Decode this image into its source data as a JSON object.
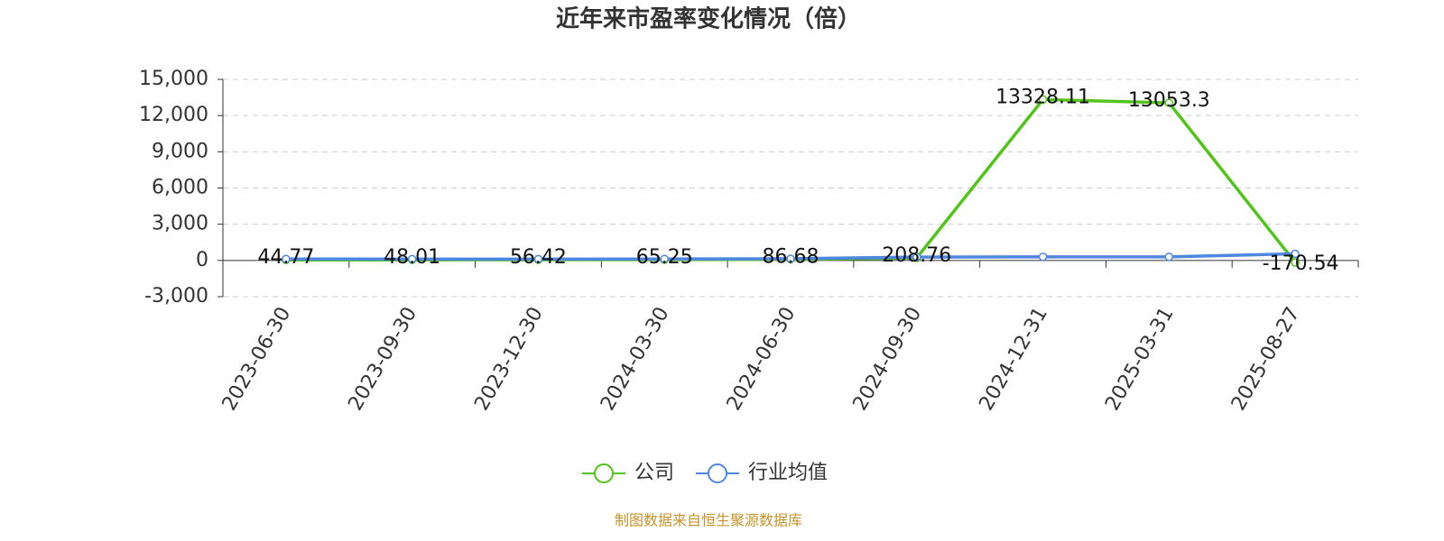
{
  "chart_data": {
    "type": "line",
    "title": "近年来市盈率变化情况（倍）",
    "categories": [
      "2023-06-30",
      "2023-09-30",
      "2023-12-30",
      "2024-03-30",
      "2024-06-30",
      "2024-09-30",
      "2024-12-31",
      "2025-03-31",
      "2025-08-27"
    ],
    "series": [
      {
        "name": "公司",
        "color": "#52c41a",
        "values": [
          44.77,
          48.01,
          56.42,
          65.25,
          86.68,
          208.76,
          13328.11,
          13053.3,
          -170.54
        ]
      },
      {
        "name": "行业均值",
        "color": "#4e87e0",
        "values": [
          120,
          110,
          110,
          120,
          140,
          280,
          300,
          300,
          550
        ]
      }
    ],
    "ylim": [
      -3000,
      15000
    ],
    "yticks": [
      {
        "value": -3000,
        "label": "-3,000"
      },
      0,
      {
        "value": 3000,
        "label": "3,000"
      },
      {
        "value": 6000,
        "label": "6,000"
      },
      {
        "value": 9000,
        "label": "9,000"
      },
      {
        "value": 12000,
        "label": "12,000"
      },
      {
        "value": 15000,
        "label": "15,000"
      }
    ],
    "grid": true,
    "legend": "bottom",
    "source": "制图数据来自恒生聚源数据库"
  }
}
